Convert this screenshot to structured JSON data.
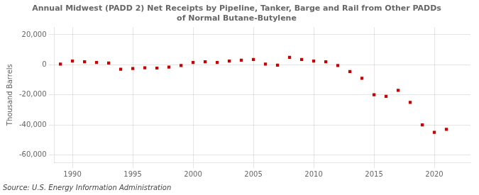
{
  "chart_data": {
    "type": "scatter",
    "title": "Annual Midwest (PADD 2) Net Receipts by Pipeline, Tanker, Barge and Rail from Other PADDs\nof Normal Butane-Butylene",
    "ylabel": "Thousand Barrels",
    "source": "Source: U.S. Energy Information Administration",
    "x": [
      1989,
      1990,
      1991,
      1992,
      1993,
      1994,
      1995,
      1996,
      1997,
      1998,
      1999,
      2000,
      2001,
      2002,
      2003,
      2004,
      2005,
      2006,
      2007,
      2008,
      2009,
      2010,
      2011,
      2012,
      2013,
      2014,
      2015,
      2016,
      2017,
      2018,
      2019,
      2020,
      2021
    ],
    "values": [
      500,
      2500,
      2000,
      1500,
      1200,
      -3000,
      -2500,
      -2000,
      -2200,
      -1500,
      -500,
      1500,
      2000,
      1500,
      2500,
      3000,
      3500,
      500,
      -300,
      5000,
      3500,
      2500,
      2000,
      -500,
      -4500,
      -9000,
      -20000,
      -21000,
      -17000,
      -25000,
      -40000,
      -45000,
      -43000
    ],
    "color": "#cc0000",
    "marker": "square",
    "xlim": [
      1988.5,
      2023
    ],
    "xticks": [
      1990,
      1995,
      2000,
      2005,
      2010,
      2015,
      2020
    ],
    "ylim": [
      -65000,
      25000
    ],
    "yticks": [
      {
        "value": -60000,
        "label": "-60,000"
      },
      {
        "value": -40000,
        "label": "-40,000"
      },
      {
        "value": -20000,
        "label": "-20,000"
      },
      0,
      {
        "value": 20000,
        "label": "20,000"
      }
    ],
    "grid": true
  }
}
